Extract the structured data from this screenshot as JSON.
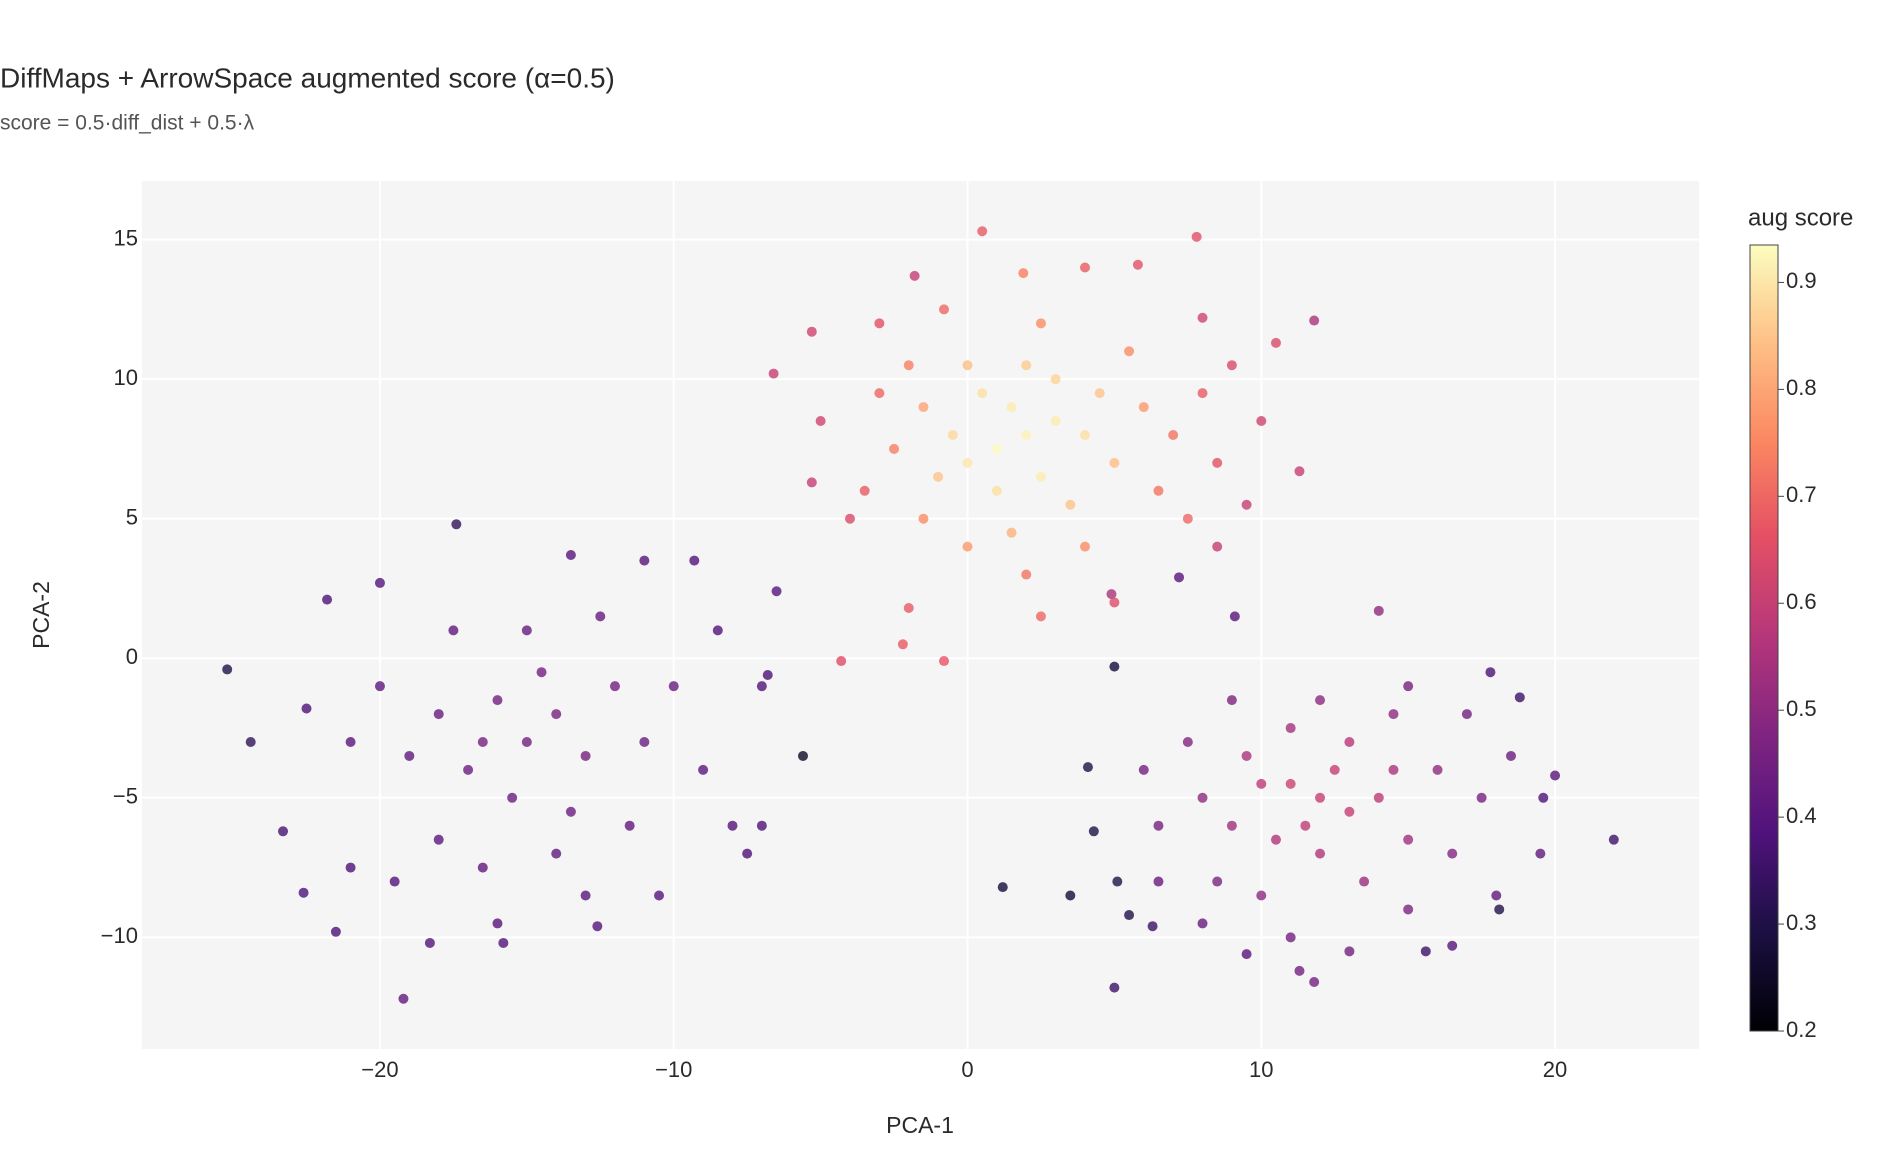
{
  "chart_data": {
    "type": "scatter",
    "title": "DiffMaps + ArrowSpace augmented score  (α=0.5)",
    "subtitle": "score = 0.5·diff_dist + 0.5·λ",
    "x_label": "PCA-1",
    "y_label": "PCA-2",
    "xlim": [
      -28.1,
      24.9
    ],
    "ylim": [
      -14,
      17.1
    ],
    "xticks": [
      {
        "value": -20,
        "label": "−20"
      },
      {
        "value": -10,
        "label": "−10"
      },
      0,
      10,
      20
    ],
    "yticks": [
      {
        "value": -10,
        "label": "−10"
      },
      {
        "value": -5,
        "label": "−5"
      },
      0,
      5,
      10,
      15
    ],
    "grid": true,
    "colorscale": "magma",
    "colorbar": {
      "title": "aug score",
      "lim": [
        0.2,
        0.935
      ],
      "ticks": [
        0.2,
        0.3,
        0.4,
        0.5,
        0.6,
        0.7,
        0.8,
        0.9
      ]
    },
    "points": [
      [
        -25.2,
        -0.4,
        0.3
      ],
      [
        -24.4,
        -3,
        0.33
      ],
      [
        -17.4,
        4.8,
        0.33
      ],
      [
        -19.2,
        -12.2,
        0.42
      ],
      [
        -5.6,
        -3.5,
        0.25
      ],
      [
        0.5,
        15.3,
        0.68
      ],
      [
        7.8,
        15.1,
        0.66
      ],
      [
        11.8,
        12.1,
        0.55
      ],
      [
        -1.8,
        13.7,
        0.6
      ],
      [
        22,
        -6.5,
        0.35
      ],
      [
        5,
        -0.3,
        0.28
      ],
      [
        1.2,
        -8.2,
        0.28
      ],
      [
        3.5,
        -8.5,
        0.28
      ],
      [
        5,
        -11.8,
        0.35
      ],
      [
        7.2,
        2.9,
        0.4
      ],
      [
        9.1,
        1.5,
        0.4
      ],
      [
        -4.3,
        -0.1,
        0.65
      ],
      [
        -0.8,
        -0.1,
        0.67
      ],
      [
        4.9,
        2.3,
        0.55
      ],
      [
        11.3,
        6.7,
        0.6
      ],
      [
        -15,
        -3,
        0.45
      ],
      [
        -14,
        -2,
        0.46
      ],
      [
        -16,
        -1.5,
        0.45
      ],
      [
        -13,
        -3.5,
        0.46
      ],
      [
        -17,
        -4,
        0.44
      ],
      [
        -15.5,
        -5,
        0.44
      ],
      [
        -12,
        -1,
        0.45
      ],
      [
        -18,
        -2,
        0.43
      ],
      [
        -14.5,
        -0.5,
        0.45
      ],
      [
        -16.5,
        -3,
        0.46
      ],
      [
        -13.5,
        -5.5,
        0.44
      ],
      [
        -11,
        -3,
        0.44
      ],
      [
        -19,
        -3.5,
        0.42
      ],
      [
        -15,
        1,
        0.43
      ],
      [
        -12.5,
        1.5,
        0.43
      ],
      [
        -17.5,
        1,
        0.42
      ],
      [
        -10,
        -1,
        0.43
      ],
      [
        -20,
        -1,
        0.41
      ],
      [
        -14,
        -7,
        0.42
      ],
      [
        -16.5,
        -7.5,
        0.42
      ],
      [
        -11.5,
        -6,
        0.42
      ],
      [
        -9,
        -4,
        0.41
      ],
      [
        -21,
        -3,
        0.4
      ],
      [
        -18,
        -6.5,
        0.41
      ],
      [
        -13,
        -8.5,
        0.41
      ],
      [
        -16,
        -9.5,
        0.4
      ],
      [
        -10.5,
        -8.5,
        0.4
      ],
      [
        -8,
        -6,
        0.39
      ],
      [
        -7,
        -1,
        0.39
      ],
      [
        -8.5,
        1,
        0.39
      ],
      [
        -11,
        3.5,
        0.4
      ],
      [
        -13.5,
        3.7,
        0.4
      ],
      [
        -20,
        2.7,
        0.39
      ],
      [
        -21.8,
        2.1,
        0.38
      ],
      [
        -22.5,
        -1.8,
        0.38
      ],
      [
        -23.3,
        -6.2,
        0.37
      ],
      [
        -22.6,
        -8.4,
        0.38
      ],
      [
        -21.5,
        -9.8,
        0.38
      ],
      [
        -18.3,
        -10.2,
        0.39
      ],
      [
        -15.8,
        -10.2,
        0.39
      ],
      [
        -12.6,
        -9.6,
        0.39
      ],
      [
        -7,
        -6,
        0.38
      ],
      [
        -6.8,
        -0.6,
        0.38
      ],
      [
        -9.3,
        3.5,
        0.39
      ],
      [
        -19.5,
        -8,
        0.39
      ],
      [
        -7.5,
        -7,
        0.38
      ],
      [
        -6.5,
        2.4,
        0.4
      ],
      [
        -21,
        -7.5,
        0.38
      ],
      [
        2,
        8,
        0.92
      ],
      [
        1,
        7.5,
        0.93
      ],
      [
        3,
        8.5,
        0.91
      ],
      [
        1.5,
        9,
        0.91
      ],
      [
        0,
        7,
        0.9
      ],
      [
        2.5,
        6.5,
        0.91
      ],
      [
        4,
        8,
        0.89
      ],
      [
        0.5,
        9.5,
        0.89
      ],
      [
        -0.5,
        8,
        0.88
      ],
      [
        3,
        10,
        0.87
      ],
      [
        1,
        6,
        0.89
      ],
      [
        2,
        10.5,
        0.86
      ],
      [
        4.5,
        9.5,
        0.85
      ],
      [
        5,
        7,
        0.84
      ],
      [
        -1,
        6.5,
        0.85
      ],
      [
        0,
        10.5,
        0.84
      ],
      [
        3.5,
        5.5,
        0.85
      ],
      [
        1.5,
        4.5,
        0.82
      ],
      [
        -1.5,
        9,
        0.8
      ],
      [
        6,
        9,
        0.78
      ],
      [
        5.5,
        11,
        0.76
      ],
      [
        2.5,
        12,
        0.76
      ],
      [
        -2,
        10.5,
        0.74
      ],
      [
        7,
        8,
        0.72
      ],
      [
        -2.5,
        7.5,
        0.74
      ],
      [
        6.5,
        6,
        0.72
      ],
      [
        4,
        4,
        0.76
      ],
      [
        0,
        4,
        0.78
      ],
      [
        -1.5,
        5,
        0.76
      ],
      [
        -3,
        9.5,
        0.7
      ],
      [
        8,
        9.5,
        0.68
      ],
      [
        7.5,
        5,
        0.7
      ],
      [
        2,
        3,
        0.72
      ],
      [
        -3.5,
        6,
        0.68
      ],
      [
        8.5,
        7,
        0.66
      ],
      [
        9,
        10.5,
        0.64
      ],
      [
        8,
        12.2,
        0.62
      ],
      [
        5.8,
        14.1,
        0.66
      ],
      [
        4,
        14,
        0.68
      ],
      [
        1.9,
        13.8,
        0.74
      ],
      [
        -0.8,
        12.5,
        0.7
      ],
      [
        -3,
        12,
        0.66
      ],
      [
        -5.3,
        11.7,
        0.62
      ],
      [
        -6.6,
        10.2,
        0.6
      ],
      [
        -5,
        8.5,
        0.62
      ],
      [
        -4,
        5,
        0.64
      ],
      [
        -5.3,
        6.3,
        0.6
      ],
      [
        -2,
        1.8,
        0.68
      ],
      [
        2.5,
        1.5,
        0.7
      ],
      [
        5,
        2,
        0.65
      ],
      [
        8.5,
        4,
        0.6
      ],
      [
        10,
        8.5,
        0.62
      ],
      [
        10.5,
        11.3,
        0.64
      ],
      [
        9.5,
        5.5,
        0.6
      ],
      [
        -2.2,
        0.5,
        0.68
      ],
      [
        12,
        -5,
        0.6
      ],
      [
        11,
        -4.5,
        0.61
      ],
      [
        13,
        -5.5,
        0.6
      ],
      [
        12.5,
        -4,
        0.6
      ],
      [
        11.5,
        -6,
        0.59
      ],
      [
        10,
        -4.5,
        0.58
      ],
      [
        14,
        -5,
        0.58
      ],
      [
        13,
        -3,
        0.57
      ],
      [
        10.5,
        -6.5,
        0.56
      ],
      [
        12,
        -7,
        0.56
      ],
      [
        14.5,
        -4,
        0.55
      ],
      [
        9.5,
        -3.5,
        0.55
      ],
      [
        15,
        -6.5,
        0.53
      ],
      [
        11,
        -2.5,
        0.54
      ],
      [
        13.5,
        -8,
        0.52
      ],
      [
        9,
        -6,
        0.53
      ],
      [
        16,
        -4,
        0.5
      ],
      [
        8,
        -5,
        0.5
      ],
      [
        12,
        -1.5,
        0.5
      ],
      [
        10,
        -8.5,
        0.5
      ],
      [
        16.5,
        -7,
        0.48
      ],
      [
        7.5,
        -3,
        0.48
      ],
      [
        14.5,
        -2,
        0.5
      ],
      [
        15,
        -9,
        0.47
      ],
      [
        8.5,
        -8,
        0.47
      ],
      [
        17.5,
        -5,
        0.46
      ],
      [
        6.5,
        -6,
        0.46
      ],
      [
        11,
        -10,
        0.45
      ],
      [
        13,
        -10.5,
        0.45
      ],
      [
        9,
        -1.5,
        0.47
      ],
      [
        15,
        -1,
        0.46
      ],
      [
        17,
        -2,
        0.45
      ],
      [
        6,
        -4,
        0.45
      ],
      [
        18,
        -8.5,
        0.42
      ],
      [
        6.5,
        -8,
        0.43
      ],
      [
        11.8,
        -11.6,
        0.45
      ],
      [
        8,
        -9.5,
        0.43
      ],
      [
        16.5,
        -10.3,
        0.4
      ],
      [
        18.5,
        -3.5,
        0.44
      ],
      [
        19.5,
        -7,
        0.42
      ],
      [
        19.6,
        -5,
        0.38
      ],
      [
        20,
        -4.2,
        0.4
      ],
      [
        4.1,
        -3.9,
        0.3
      ],
      [
        4.3,
        -6.2,
        0.3
      ],
      [
        5.1,
        -8,
        0.3
      ],
      [
        5.5,
        -9.2,
        0.3
      ],
      [
        14,
        1.7,
        0.5
      ],
      [
        11.3,
        -11.2,
        0.45
      ],
      [
        15.6,
        -10.5,
        0.35
      ],
      [
        18.1,
        -9,
        0.3
      ],
      [
        17.8,
        -0.5,
        0.38
      ],
      [
        18.8,
        -1.4,
        0.35
      ],
      [
        6.3,
        -9.6,
        0.35
      ],
      [
        9.5,
        -10.6,
        0.4
      ]
    ]
  }
}
